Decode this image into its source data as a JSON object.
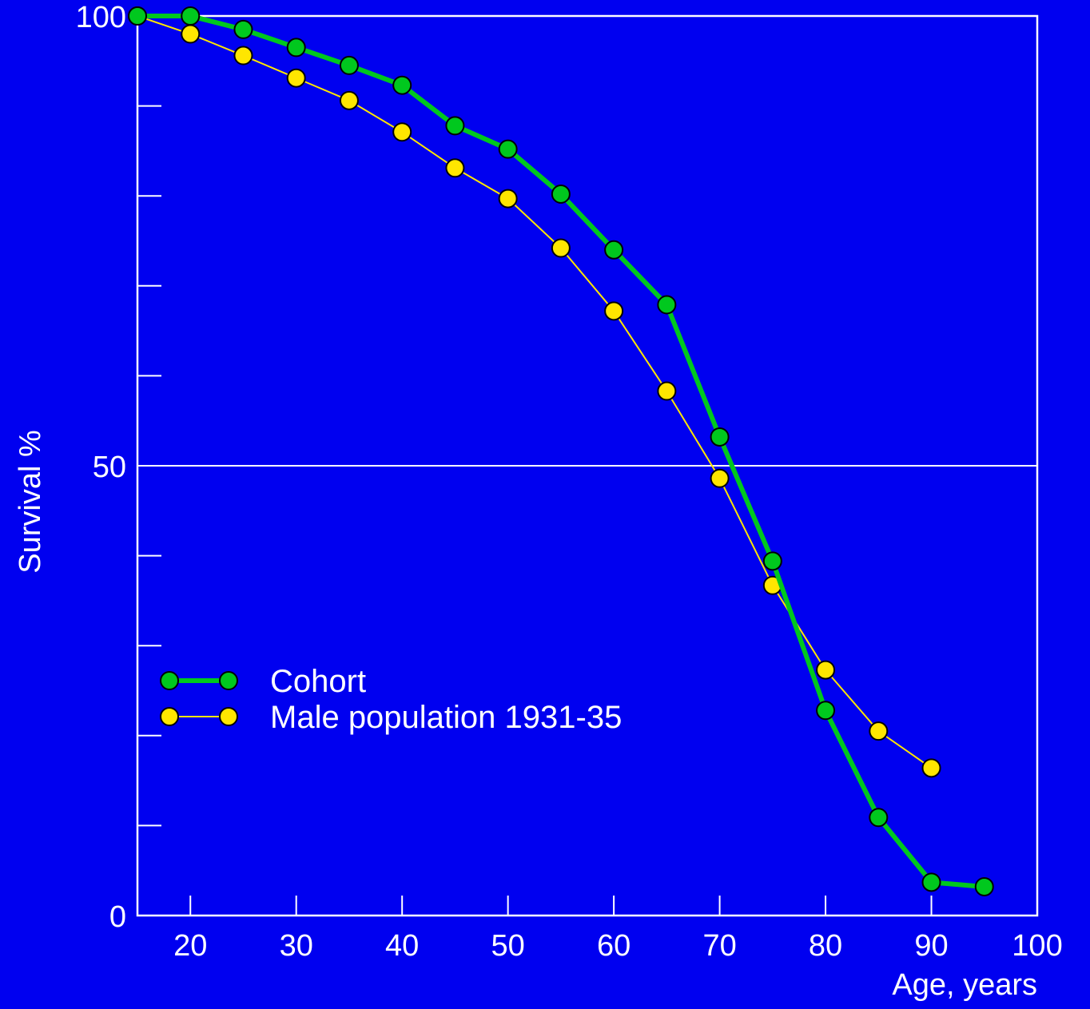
{
  "colors": {
    "background": "#0000f0",
    "axis": "#ffffff",
    "cohort": "#00c81e",
    "male_population": "#ffe600",
    "marker_outline": "#000000"
  },
  "chart_data": {
    "type": "line",
    "title": "",
    "xlabel": "Age, years",
    "ylabel": "Survival %",
    "xlim": [
      15,
      100
    ],
    "ylim": [
      0,
      100
    ],
    "x_ticks": [
      20,
      30,
      40,
      50,
      60,
      70,
      80,
      90,
      100
    ],
    "x_tick_labels": [
      "20",
      "30",
      "40",
      "50",
      "60",
      "70",
      "80",
      "90",
      "100"
    ],
    "y_ticks": [
      0,
      10,
      20,
      30,
      40,
      50,
      60,
      70,
      80,
      90,
      100
    ],
    "y_tick_labels": [
      "0",
      "",
      "",
      "",
      "",
      "50",
      "",
      "",
      "",
      "",
      "100"
    ],
    "reference_line": 50,
    "grid": false,
    "legend_position": "lower-left",
    "series": [
      {
        "name": "Cohort",
        "color": "#00c81e",
        "x": [
          15,
          20,
          25,
          30,
          35,
          40,
          45,
          50,
          55,
          60,
          65,
          70,
          75,
          80,
          85,
          90,
          95
        ],
        "y": [
          100,
          100,
          98.5,
          96.5,
          94.5,
          92.3,
          87.8,
          85.2,
          80.2,
          74,
          67.9,
          53.2,
          39.4,
          22.8,
          10.9,
          3.7,
          3.2
        ]
      },
      {
        "name": "Male population 1931-35",
        "color": "#ffe600",
        "x": [
          15,
          20,
          25,
          30,
          35,
          40,
          45,
          50,
          55,
          60,
          65,
          70,
          75,
          80,
          85,
          90
        ],
        "y": [
          100,
          98,
          95.6,
          93.1,
          90.6,
          87.1,
          83.1,
          79.7,
          74.2,
          67.2,
          58.3,
          48.6,
          36.7,
          27.3,
          20.5,
          16.4
        ]
      }
    ]
  }
}
